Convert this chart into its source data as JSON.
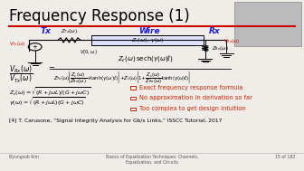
{
  "title": "Frequency Response (1)",
  "bg_color": "#f0ede8",
  "title_color": "#000000",
  "red_line_color": "#cc0000",
  "tx_label": "Tx",
  "rx_label": "Rx",
  "wire_label": "Wire",
  "tx_color": "#1a1aff",
  "rx_color": "#1a1aff",
  "wire_color": "#1a1aff",
  "zc_formula": "$Z_c(\\omega) = \\sqrt{(R+j\\omega L)/(G+j\\omega C)}$",
  "gamma_formula": "$\\gamma(\\omega) = \\sqrt{(R+j\\omega L)(G+j\\omega C)}$",
  "bullet1": "Exact frequency response formula",
  "bullet2": "No approximation in derivation so far",
  "bullet3": "Too complex to get design intuition",
  "bullet_color": "#cc2200",
  "ref_text": "[4] T. Carusone, “Signal Integrity Analysis for Gb/s Links,” ISSCC Tutorial, 2017",
  "footer_left": "Byungsub Kim",
  "footer_center_line1": "Basics of Equalization Techniques: Channels,",
  "footer_center_line2": "Equalization, and Circuits",
  "footer_right": "15 of 182",
  "footer_color": "#555555"
}
